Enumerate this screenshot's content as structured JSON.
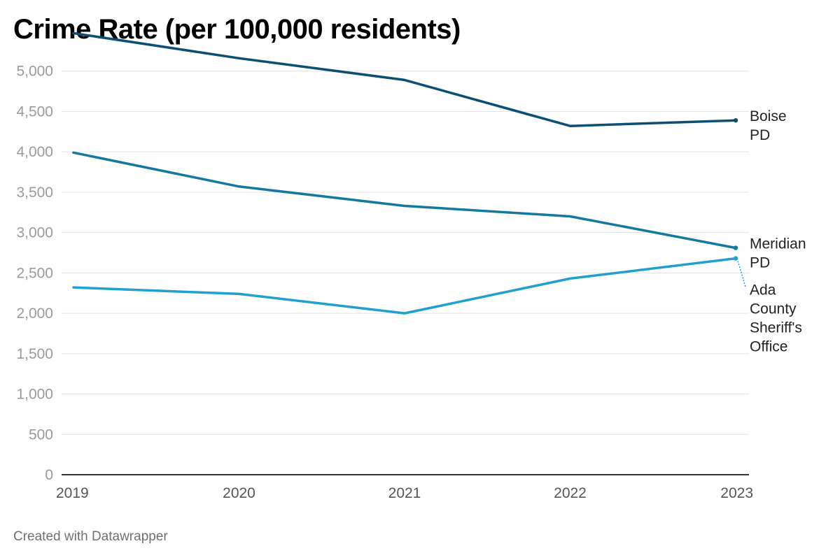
{
  "title": "Crime Rate (per 100,000 residents)",
  "credit": "Created with Datawrapper",
  "chart_data": {
    "type": "line",
    "title": "Crime Rate (per 100,000 residents)",
    "x": [
      "2019",
      "2020",
      "2021",
      "2022",
      "2023"
    ],
    "yticks": [
      0,
      500,
      1000,
      1500,
      2000,
      2500,
      3000,
      3500,
      4000,
      4500,
      5000
    ],
    "ylim": [
      0,
      5500
    ],
    "grid": true,
    "legend": "direct labels at right end of lines",
    "series": [
      {
        "name": "Boise PD",
        "label_lines": [
          "Boise",
          "PD"
        ],
        "color": "#0b4f72",
        "values": [
          5470,
          5160,
          4890,
          4320,
          4390
        ]
      },
      {
        "name": "Meridian PD",
        "label_lines": [
          "Meridian",
          "PD"
        ],
        "color": "#14799f",
        "values": [
          3990,
          3570,
          3330,
          3200,
          2810
        ]
      },
      {
        "name": "Ada County Sheriff's Office",
        "label_lines": [
          "Ada",
          "County",
          "Sheriff's",
          "Office"
        ],
        "color": "#21a0cf",
        "values": [
          2320,
          2240,
          2000,
          2430,
          2680
        ]
      }
    ]
  }
}
